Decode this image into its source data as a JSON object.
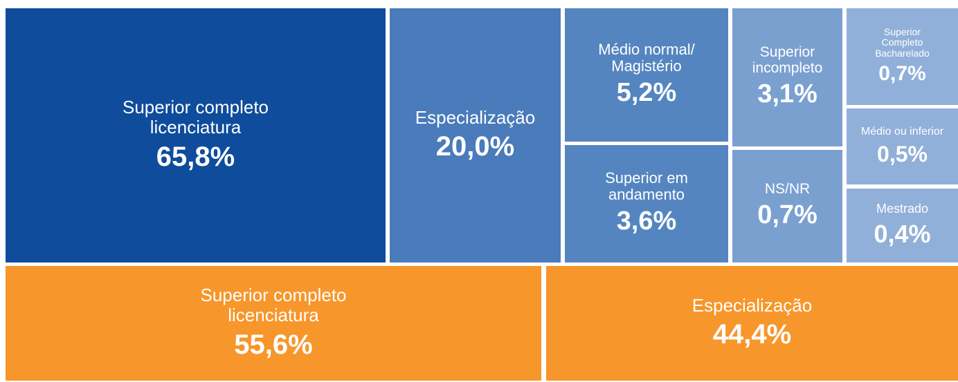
{
  "chart_data": [
    {
      "type": "treemap",
      "categories": [
        "Superior completo\nlicenciatura",
        "Especialização",
        "Médio normal/\nMagistério",
        "Superior em\nandamento",
        "Superior\nincompleto",
        "NS/NR",
        "Superior\nCompleto\nBacharelado",
        "Médio ou inferior",
        "Mestrado"
      ],
      "values": [
        65.8,
        20.0,
        5.2,
        3.6,
        3.1,
        0.7,
        0.7,
        0.5,
        0.4
      ],
      "value_labels": [
        "65,8%",
        "20,0%",
        "5,2%",
        "3,6%",
        "3,1%",
        "0,7%",
        "0,7%",
        "0,5%",
        "0,4%"
      ],
      "colors": [
        "#0f4c9c",
        "#4a7bbb",
        "#5585c0",
        "#5585c0",
        "#7aa0d0",
        "#7aa0d0",
        "#91b0d9",
        "#91b0d9",
        "#91b0d9"
      ]
    },
    {
      "type": "treemap",
      "categories": [
        "Superior completo\nlicenciatura",
        "Especialização"
      ],
      "values": [
        55.6,
        44.4
      ],
      "value_labels": [
        "55,6%",
        "44,4%"
      ],
      "colors": [
        "#f7962a",
        "#f7962a"
      ]
    }
  ]
}
